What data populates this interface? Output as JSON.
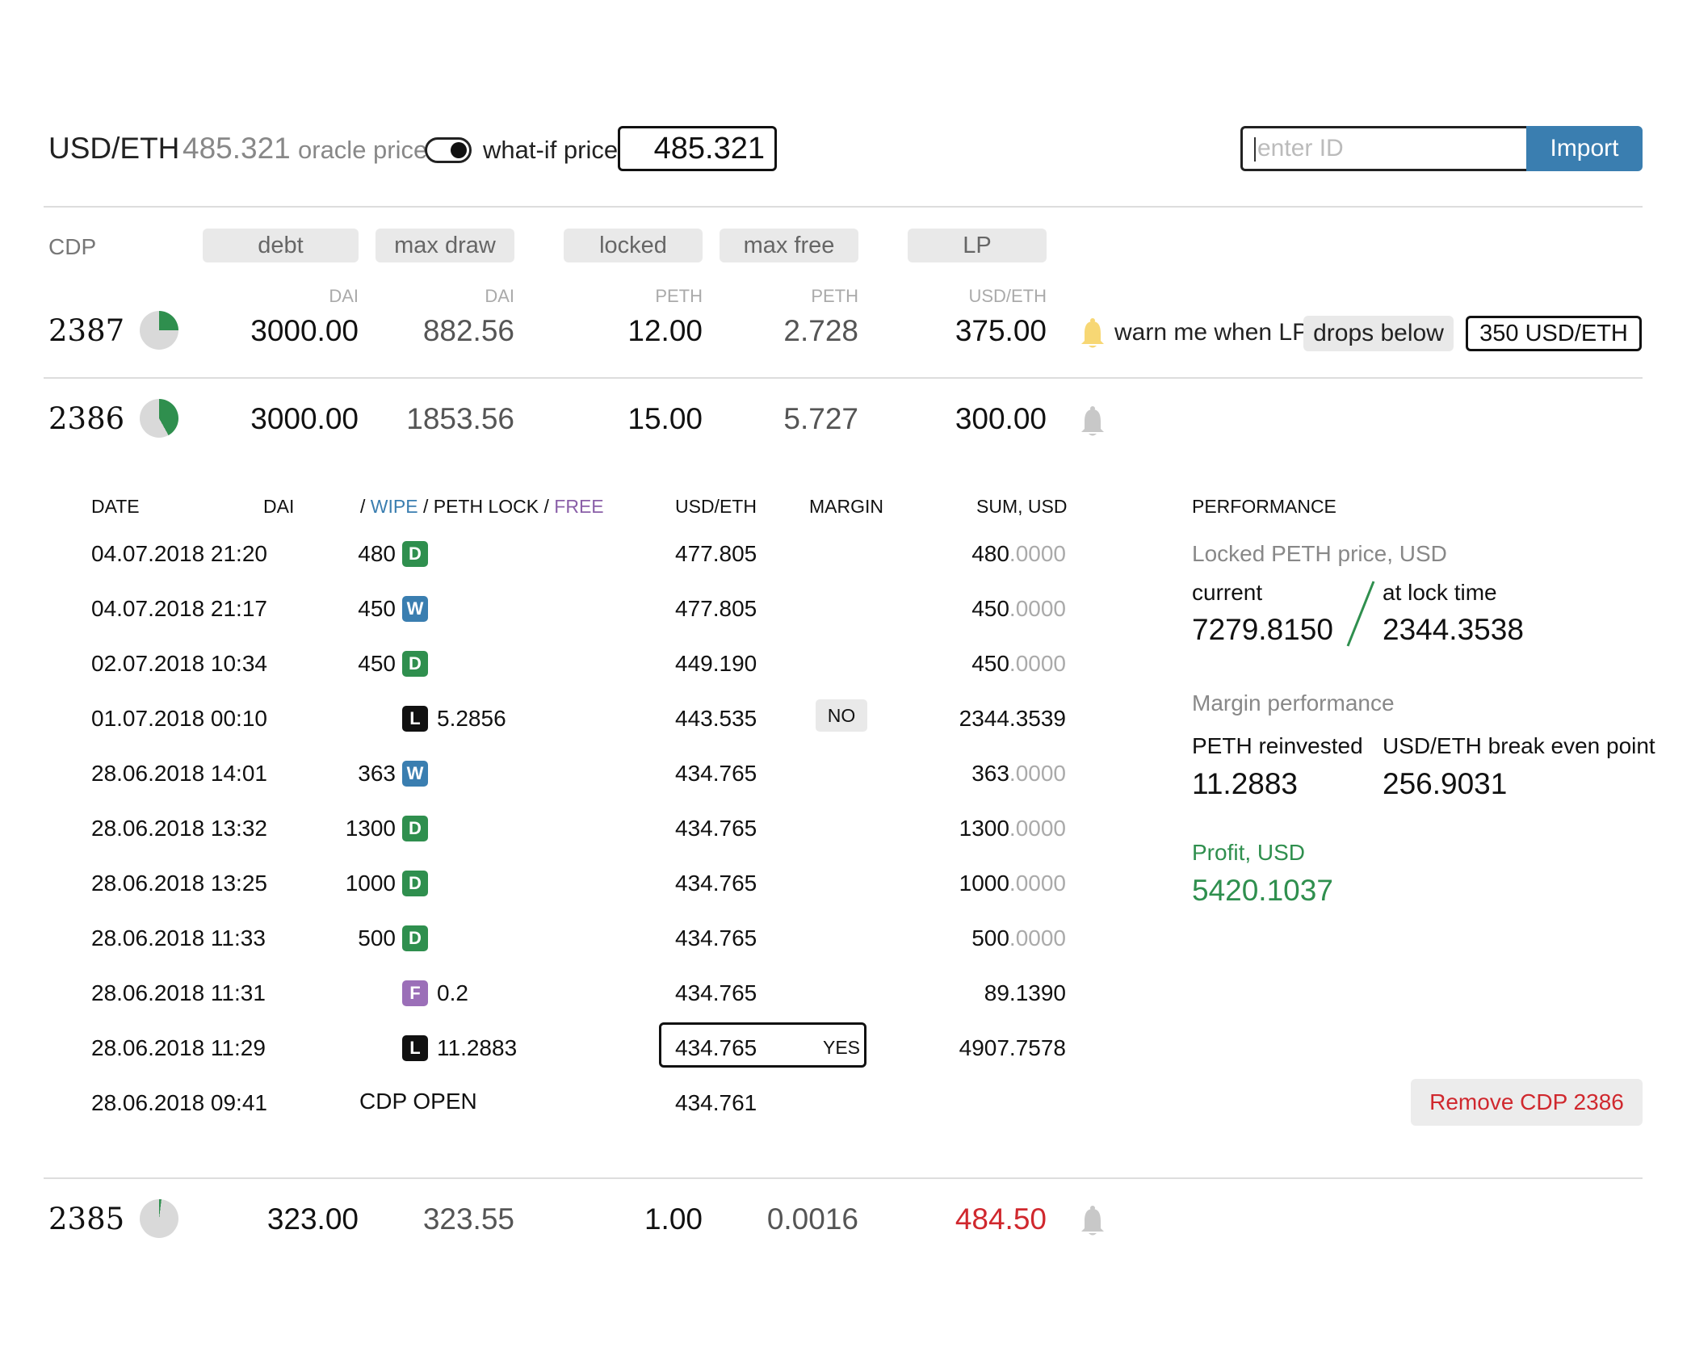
{
  "header": {
    "pair_label": "USD/ETH",
    "pair_price": "485.321",
    "oracle_label": "oracle price",
    "whatif_label": "what-if price",
    "whatif_value": "485.321",
    "id_placeholder": "enter ID",
    "import_label": "Import"
  },
  "columns": {
    "cdp": "CDP",
    "debt": "debt",
    "max_draw": "max draw",
    "locked": "locked",
    "max_free": "max free",
    "lp": "LP",
    "units": {
      "debt": "DAI",
      "max_draw": "DAI",
      "locked": "PETH",
      "max_free": "PETH",
      "lp": "USD/ETH"
    }
  },
  "cdps": [
    {
      "id": "2387",
      "pie_fraction": 0.25,
      "debt": "3000.00",
      "max_draw": "882.56",
      "locked": "12.00",
      "max_free": "2.728",
      "lp": "375.00",
      "lp_warning": false,
      "bell_active": true
    },
    {
      "id": "2386",
      "pie_fraction": 0.42,
      "debt": "3000.00",
      "max_draw": "1853.56",
      "locked": "15.00",
      "max_free": "5.727",
      "lp": "300.00",
      "lp_warning": false,
      "bell_active": false
    },
    {
      "id": "2385",
      "pie_fraction": 0.02,
      "debt": "323.00",
      "max_draw": "323.55",
      "locked": "1.00",
      "max_free": "0.0016",
      "lp": "484.50",
      "lp_warning": true,
      "bell_active": false
    }
  ],
  "warn": {
    "text": "warn me when LP",
    "condition": "drops below",
    "threshold": "350 USD/ETH"
  },
  "history": {
    "headers": {
      "date": "DATE",
      "dai": "DAI",
      "slash1": "/",
      "wipe": "WIPE",
      "slash2": "/",
      "peth_lock": "PETH LOCK",
      "slash3": "/",
      "free": "FREE",
      "usd_eth": "USD/ETH",
      "margin": "MARGIN",
      "sum_usd": "SUM, USD"
    },
    "rows": [
      {
        "date": "04.07.2018 21:20",
        "dai": "480",
        "type": "D",
        "peth": "",
        "usd_eth": "477.805",
        "margin": "",
        "sum_int": "480",
        "sum_dec": ".0000"
      },
      {
        "date": "04.07.2018 21:17",
        "dai": "450",
        "type": "W",
        "peth": "",
        "usd_eth": "477.805",
        "margin": "",
        "sum_int": "450",
        "sum_dec": ".0000"
      },
      {
        "date": "02.07.2018 10:34",
        "dai": "450",
        "type": "D",
        "peth": "",
        "usd_eth": "449.190",
        "margin": "",
        "sum_int": "450",
        "sum_dec": ".0000"
      },
      {
        "date": "01.07.2018 00:10",
        "dai": "",
        "type": "L",
        "peth": "5.2856",
        "usd_eth": "443.535",
        "margin": "NO",
        "sum_int": "2344.3539",
        "sum_dec": ""
      },
      {
        "date": "28.06.2018 14:01",
        "dai": "363",
        "type": "W",
        "peth": "",
        "usd_eth": "434.765",
        "margin": "",
        "sum_int": "363",
        "sum_dec": ".0000"
      },
      {
        "date": "28.06.2018 13:32",
        "dai": "1300",
        "type": "D",
        "peth": "",
        "usd_eth": "434.765",
        "margin": "",
        "sum_int": "1300",
        "sum_dec": ".0000"
      },
      {
        "date": "28.06.2018 13:25",
        "dai": "1000",
        "type": "D",
        "peth": "",
        "usd_eth": "434.765",
        "margin": "",
        "sum_int": "1000",
        "sum_dec": ".0000"
      },
      {
        "date": "28.06.2018 11:33",
        "dai": "500",
        "type": "D",
        "peth": "",
        "usd_eth": "434.765",
        "margin": "",
        "sum_int": "500",
        "sum_dec": ".0000"
      },
      {
        "date": "28.06.2018 11:31",
        "dai": "",
        "type": "F",
        "peth": "0.2",
        "usd_eth": "434.765",
        "margin": "",
        "sum_int": "89.1390",
        "sum_dec": ""
      },
      {
        "date": "28.06.2018 11:29",
        "dai": "",
        "type": "L",
        "peth": "11.2883",
        "usd_eth": "434.765",
        "margin": "YES",
        "sum_int": "4907.7578",
        "sum_dec": ""
      },
      {
        "date": "28.06.2018 09:41",
        "dai": "",
        "type": "",
        "peth": "",
        "open_label": "CDP OPEN",
        "usd_eth": "434.761",
        "margin": "",
        "sum_int": "",
        "sum_dec": ""
      }
    ]
  },
  "performance": {
    "title": "PERFORMANCE",
    "locked_price_label": "Locked PETH price, USD",
    "current_label": "current",
    "current_value": "7279.8150",
    "lock_time_label": "at lock time",
    "lock_time_value": "2344.3538",
    "margin_label": "Margin performance",
    "reinvested_label": "PETH reinvested",
    "reinvested_value": "11.2883",
    "break_even_label": "USD/ETH break even point",
    "break_even_value": "256.9031",
    "profit_label": "Profit, USD",
    "profit_value": "5420.1037"
  },
  "remove_label": "Remove CDP 2386",
  "colors": {
    "accent_blue": "#3a7eb0",
    "green": "#2f8f4e",
    "red": "#d0282e",
    "purple": "#9b6fb8",
    "bell_active": "#f7d774",
    "bell_inactive": "#c8c8c8"
  }
}
